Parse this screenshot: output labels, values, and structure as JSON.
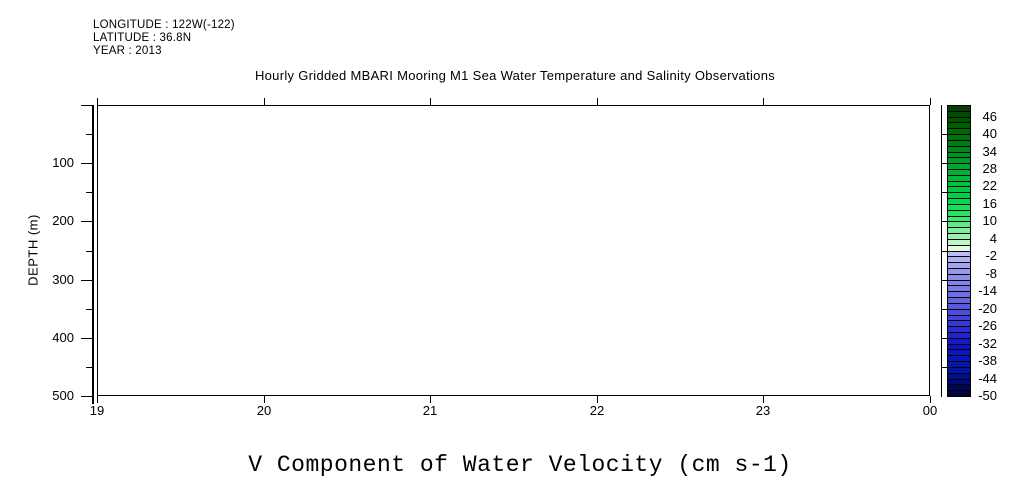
{
  "background_color": "#ffffff",
  "text_color": "#000000",
  "header": {
    "lines": [
      "LONGITUDE : 122W(-122)",
      "LATITUDE : 36.8N",
      "YEAR : 2013"
    ]
  },
  "title": "Hourly Gridded MBARI Mooring M1 Sea Water Temperature and Salinity Observations",
  "caption": "V Component of Water Velocity (cm s-1)",
  "chart_data": {
    "type": "heatmap",
    "title": "Hourly Gridded MBARI Mooring M1 Sea Water Temperature and Salinity Observations",
    "variable": "V Component of Water Velocity (cm s-1)",
    "xlabel": "",
    "ylabel": "DEPTH (m)",
    "x_tick_labels": [
      "19",
      "20",
      "21",
      "22",
      "23",
      "00"
    ],
    "x_range_hours": [
      19,
      24
    ],
    "y_tick_values": [
      100,
      200,
      300,
      400,
      500
    ],
    "y_minor_step": 50,
    "ylim": [
      500,
      0
    ],
    "grid": false,
    "values": [],
    "plot_area_empty": true,
    "colorbar": {
      "min": -50,
      "max": 50,
      "cell_size": 2,
      "label_values": [
        46,
        40,
        34,
        28,
        22,
        16,
        10,
        4,
        -2,
        -8,
        -14,
        -20,
        -26,
        -32,
        -38,
        -44,
        -50
      ],
      "tick_values": [
        40,
        30,
        20,
        10,
        0,
        -10,
        -20,
        -30,
        -40
      ],
      "gradient_stops": [
        [
          50,
          "#003c00"
        ],
        [
          42,
          "#006400"
        ],
        [
          34,
          "#008c1e"
        ],
        [
          26,
          "#00b437"
        ],
        [
          18,
          "#00d448"
        ],
        [
          12,
          "#2ce762"
        ],
        [
          8,
          "#6feb92"
        ],
        [
          4,
          "#aaf2bc"
        ],
        [
          1,
          "#e2fae2"
        ],
        [
          -1,
          "#bcbcf6"
        ],
        [
          -8,
          "#9191ed"
        ],
        [
          -16,
          "#6a6ae4"
        ],
        [
          -24,
          "#3c3cd9"
        ],
        [
          -32,
          "#1111c8"
        ],
        [
          -40,
          "#0018aa"
        ],
        [
          -46,
          "#000766"
        ],
        [
          -50,
          "#000233"
        ]
      ]
    }
  }
}
